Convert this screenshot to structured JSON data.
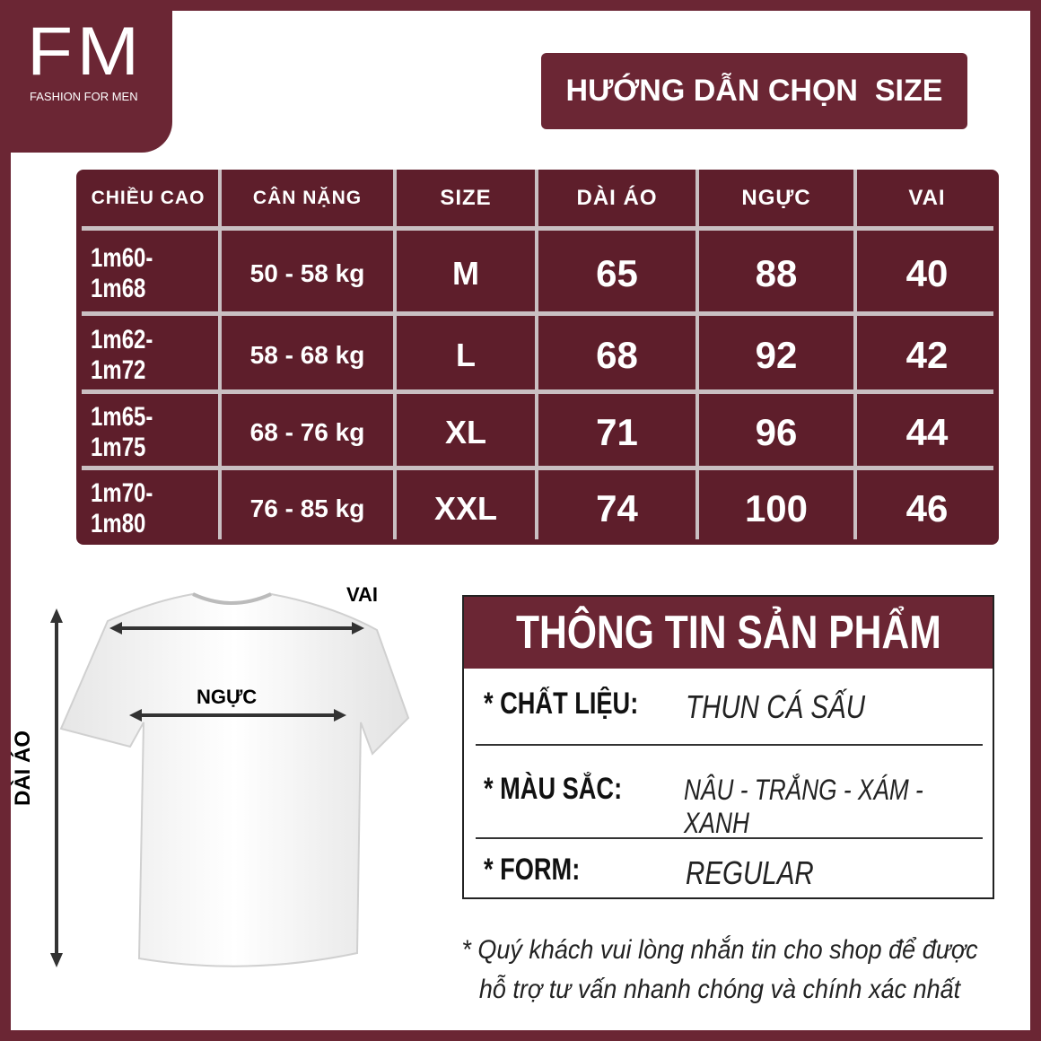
{
  "logo": {
    "mark": "FM",
    "tagline": "FASHION FOR MEN"
  },
  "title": "HƯỚNG DẪN CHỌN  SIZE",
  "table": {
    "header": [
      "CHIỀU CAO",
      "CÂN NẶNG",
      "SIZE",
      "DÀI ÁO",
      "NGỰC",
      "VAI"
    ],
    "rows": [
      [
        "1m60-1m68",
        "50 - 58 kg",
        "M",
        "65",
        "88",
        "40"
      ],
      [
        "1m62- 1m72",
        "58 - 68 kg",
        "L",
        "68",
        "92",
        "42"
      ],
      [
        "1m65- 1m75",
        "68 - 76 kg",
        "XL",
        "71",
        "96",
        "44"
      ],
      [
        "1m70- 1m80",
        "76 - 85 kg",
        "XXL",
        "74",
        "100",
        "46"
      ]
    ]
  },
  "diagram": {
    "shoulder": "VAI",
    "chest": "NGỰC",
    "length": "DÀI ÁO"
  },
  "info": {
    "title": "THÔNG TIN SẢN PHẨM",
    "rows": [
      {
        "label": "* CHẤT LIỆU:",
        "value": "THUN CÁ SẤU"
      },
      {
        "label": "* MÀU SẮC:",
        "value": "NÂU - TRẮNG - XÁM - XANH"
      },
      {
        "label": "* FORM:",
        "value": "REGULAR"
      }
    ]
  },
  "note": [
    "* Quý khách vui lòng nhắn tin cho shop để được",
    "hỗ trợ tư vấn nhanh chóng và chính xác nhất"
  ]
}
